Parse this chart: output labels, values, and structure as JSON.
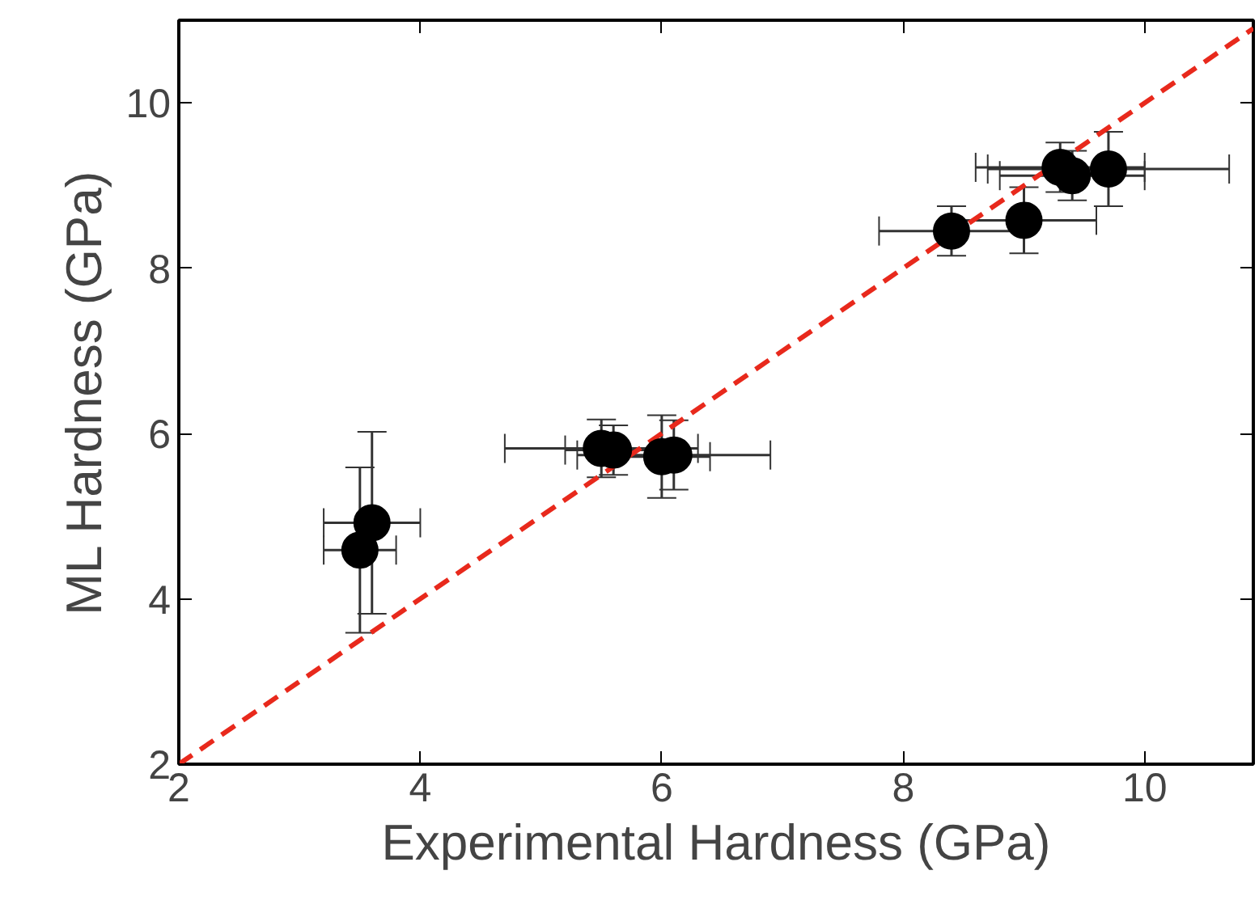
{
  "chart_data": {
    "type": "scatter",
    "xlabel": "Experimental Hardness (GPa)",
    "ylabel": "ML Hardness (GPa)",
    "xlim": [
      2,
      10.9
    ],
    "ylim": [
      2,
      11
    ],
    "xticks": [
      2,
      4,
      6,
      8,
      10
    ],
    "yticks": [
      2,
      4,
      6,
      8,
      10
    ],
    "grid": false,
    "series": [
      {
        "type": "line",
        "color": "#e8291c",
        "line_style": "dashed",
        "x": [
          2,
          10.9
        ],
        "values": [
          2,
          10.9
        ]
      },
      {
        "color": "#000000",
        "marker": "circle",
        "x": [
          3.5,
          3.6,
          5.5,
          5.6,
          6.0,
          6.1,
          8.4,
          9.0,
          9.3,
          9.4,
          9.7
        ],
        "values": [
          4.59,
          4.92,
          5.82,
          5.8,
          5.72,
          5.74,
          8.45,
          8.58,
          9.22,
          9.12,
          9.2
        ],
        "errors": [
          1.0,
          1.1,
          0.35,
          0.3,
          0.5,
          0.42,
          0.3,
          0.4,
          0.3,
          0.3,
          0.45
        ],
        "xerrors": [
          0.3,
          0.4,
          0.8,
          0.4,
          0.4,
          0.8,
          0.6,
          0.6,
          0.7,
          0.6,
          1.0
        ]
      }
    ]
  }
}
